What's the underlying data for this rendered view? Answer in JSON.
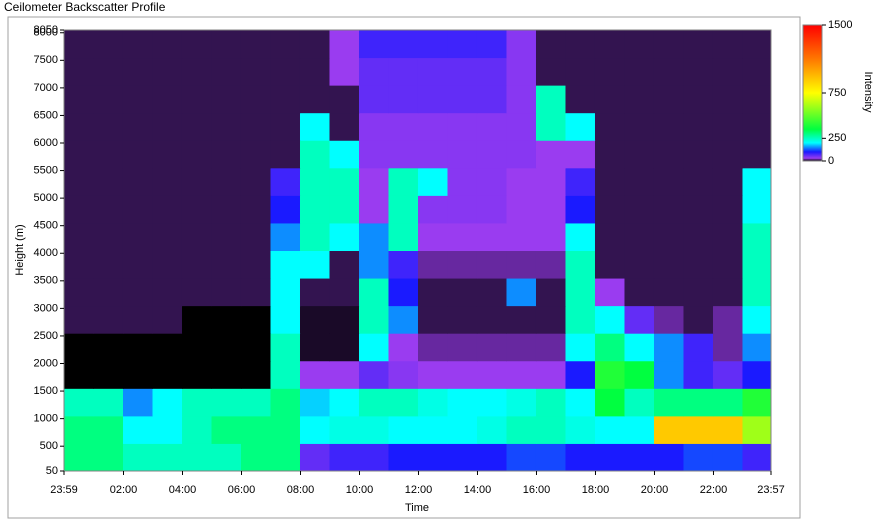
{
  "chart_data": {
    "type": "heatmap",
    "title": "Ceilometer Backscatter Profile",
    "xlabel": "Time",
    "ylabel": "Height (m)",
    "xlim": [
      0,
      1438
    ],
    "xticks": [
      {
        "value": 0,
        "label": "23:59"
      },
      {
        "value": 121,
        "label": "02:00"
      },
      {
        "value": 241,
        "label": "04:00"
      },
      {
        "value": 361,
        "label": "06:00"
      },
      {
        "value": 481,
        "label": "08:00"
      },
      {
        "value": 601,
        "label": "10:00"
      },
      {
        "value": 721,
        "label": "12:00"
      },
      {
        "value": 841,
        "label": "14:00"
      },
      {
        "value": 961,
        "label": "16:00"
      },
      {
        "value": 1081,
        "label": "18:00"
      },
      {
        "value": 1201,
        "label": "20:00"
      },
      {
        "value": 1321,
        "label": "22:00"
      },
      {
        "value": 1438,
        "label": "23:57"
      }
    ],
    "ylim": [
      50,
      8050
    ],
    "yticks": [
      50,
      500,
      1000,
      1500,
      2000,
      2500,
      3000,
      3500,
      4000,
      4500,
      5000,
      5500,
      6000,
      6500,
      7000,
      7500,
      8000,
      8050
    ],
    "xbins": [
      0,
      60,
      120,
      180,
      240,
      300,
      360,
      420,
      480,
      540,
      600,
      660,
      720,
      780,
      840,
      900,
      960,
      1020,
      1080,
      1140,
      1200,
      1260,
      1320,
      1380,
      1438
    ],
    "ybins": [
      50,
      550,
      1050,
      1550,
      2050,
      2550,
      3050,
      3550,
      4050,
      4550,
      5050,
      5550,
      6050,
      6550,
      7050,
      7550,
      8050
    ],
    "z": [
      [
        300,
        300,
        250,
        250,
        250,
        250,
        300,
        300,
        60,
        80,
        80,
        100,
        100,
        100,
        100,
        120,
        120,
        100,
        100,
        100,
        100,
        120,
        120,
        80
      ],
      [
        300,
        300,
        200,
        200,
        250,
        300,
        300,
        300,
        200,
        220,
        220,
        200,
        200,
        200,
        220,
        250,
        250,
        220,
        200,
        200,
        900,
        900,
        900,
        600
      ],
      [
        250,
        250,
        150,
        200,
        250,
        250,
        250,
        300,
        180,
        200,
        250,
        250,
        220,
        200,
        200,
        220,
        250,
        200,
        350,
        250,
        300,
        300,
        300,
        400
      ],
      [
        0,
        0,
        0,
        0,
        0,
        0,
        0,
        250,
        30,
        30,
        60,
        40,
        30,
        30,
        30,
        30,
        30,
        100,
        400,
        350,
        150,
        80,
        60,
        100
      ],
      [
        0,
        0,
        0,
        0,
        0,
        0,
        0,
        250,
        5,
        5,
        200,
        30,
        20,
        20,
        20,
        20,
        20,
        200,
        300,
        200,
        150,
        80,
        20,
        150
      ],
      [
        10,
        10,
        10,
        10,
        0,
        0,
        0,
        200,
        5,
        5,
        250,
        150,
        10,
        10,
        10,
        10,
        10,
        250,
        200,
        60,
        20,
        10,
        20,
        200
      ],
      [
        10,
        10,
        10,
        10,
        10,
        10,
        10,
        200,
        10,
        10,
        250,
        100,
        10,
        10,
        10,
        150,
        10,
        250,
        30,
        10,
        10,
        10,
        10,
        250
      ],
      [
        10,
        10,
        10,
        10,
        10,
        10,
        10,
        200,
        200,
        10,
        150,
        80,
        20,
        20,
        20,
        20,
        20,
        250,
        10,
        10,
        10,
        10,
        10,
        250
      ],
      [
        10,
        10,
        10,
        10,
        10,
        10,
        10,
        150,
        250,
        200,
        150,
        250,
        30,
        30,
        30,
        30,
        30,
        200,
        10,
        10,
        10,
        10,
        10,
        250
      ],
      [
        10,
        10,
        10,
        10,
        10,
        10,
        10,
        100,
        250,
        250,
        30,
        250,
        40,
        40,
        40,
        30,
        30,
        100,
        10,
        10,
        10,
        10,
        10,
        200
      ],
      [
        10,
        10,
        10,
        10,
        10,
        10,
        10,
        80,
        250,
        250,
        30,
        250,
        200,
        40,
        40,
        30,
        30,
        80,
        10,
        10,
        10,
        10,
        10,
        200
      ],
      [
        10,
        10,
        10,
        10,
        10,
        10,
        10,
        10,
        250,
        200,
        40,
        40,
        40,
        40,
        40,
        40,
        30,
        30,
        10,
        10,
        10,
        10,
        10,
        10
      ],
      [
        10,
        10,
        10,
        10,
        10,
        10,
        10,
        10,
        200,
        10,
        40,
        40,
        40,
        40,
        40,
        40,
        250,
        200,
        10,
        10,
        10,
        10,
        10,
        10
      ],
      [
        10,
        10,
        10,
        10,
        10,
        10,
        10,
        10,
        10,
        10,
        60,
        60,
        60,
        60,
        60,
        40,
        250,
        10,
        10,
        10,
        10,
        10,
        10,
        10
      ],
      [
        10,
        10,
        10,
        10,
        10,
        10,
        10,
        10,
        10,
        30,
        60,
        60,
        60,
        60,
        60,
        40,
        10,
        10,
        10,
        10,
        10,
        10,
        10,
        10
      ],
      [
        10,
        10,
        10,
        10,
        10,
        10,
        10,
        10,
        10,
        30,
        80,
        80,
        80,
        80,
        80,
        40,
        10,
        10,
        10,
        10,
        10,
        10,
        10,
        10
      ]
    ],
    "colorscale": [
      [
        0,
        "#000000"
      ],
      [
        30,
        "#9a3cf0"
      ],
      [
        100,
        "#1a1aff"
      ],
      [
        200,
        "#00ffff"
      ],
      [
        350,
        "#00ff40"
      ],
      [
        750,
        "#ffff00"
      ],
      [
        1100,
        "#ff8000"
      ],
      [
        1500,
        "#ff0000"
      ]
    ],
    "colorbar": {
      "label": "Intensity",
      "lim": [
        0,
        1500
      ],
      "ticks": [
        0,
        250,
        750,
        1500
      ]
    }
  }
}
